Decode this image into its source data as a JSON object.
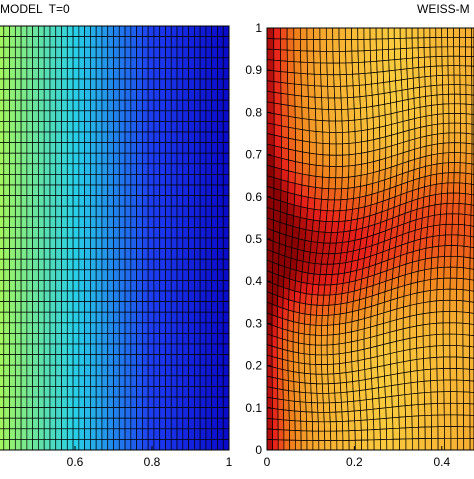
{
  "chart_data": [
    {
      "type": "heatmap",
      "title": "MODEL  T=0",
      "xlim": [
        0.4,
        1.0
      ],
      "ylim": [
        0,
        1
      ],
      "xticks": [
        "0.6",
        "0.8",
        "1"
      ],
      "yticks": [],
      "grid": {
        "nx": 40,
        "ny": 40,
        "deformed": false
      },
      "colormap": "jet, varying left to right (green at left, dark blue at right)"
    },
    {
      "type": "heatmap",
      "title": "WEISS-M",
      "xlim": [
        0,
        0.5
      ],
      "ylim": [
        0,
        1
      ],
      "xticks": [
        "0",
        "0.2",
        "0.4"
      ],
      "yticks": [
        "0",
        "0.1",
        "0.2",
        "0.3",
        "0.4",
        "0.5",
        "0.6",
        "0.7",
        "0.8",
        "0.9",
        "1"
      ],
      "grid": {
        "nx": 40,
        "ny": 40,
        "deformed": true
      },
      "colormap": "hot, dark red at left wall and centerline, yellow near corners"
    }
  ],
  "colors": {
    "hot_dark": "#8b0000",
    "hot_red": "#e8201a",
    "hot_orange": "#f07d1a",
    "hot_yellow": "#fbd040",
    "jet_green": "#a6f75a",
    "jet_cyan": "#28d0e8",
    "jet_blue": "#1c3cf0",
    "jet_darkblue": "#0a0ac8"
  }
}
